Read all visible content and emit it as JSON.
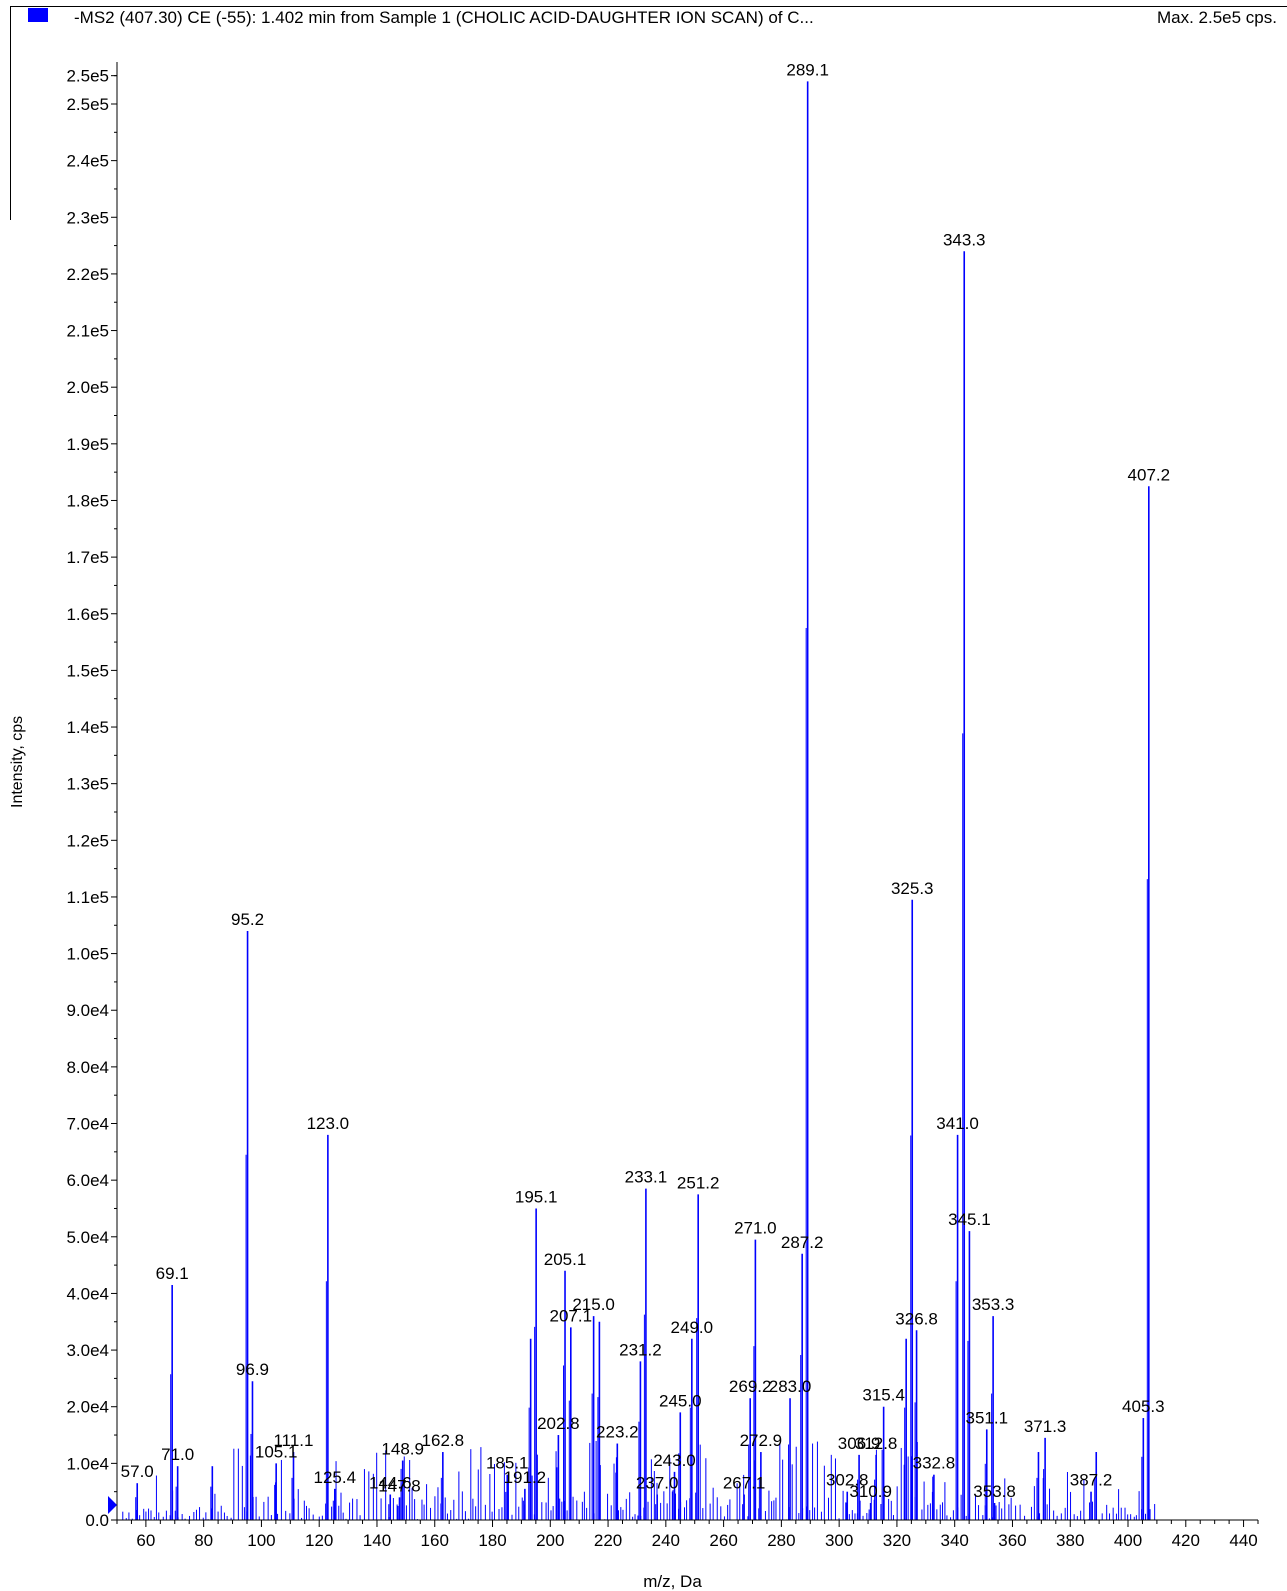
{
  "header": {
    "title": "-MS2 (407.30) CE (-55): 1.402 min from Sample 1 (CHOLIC ACID-DAUGHTER ION SCAN) of C...",
    "max_label": "Max. 2.5e5 cps."
  },
  "colors": {
    "series": "#0000ff",
    "axis": "#000000",
    "text": "#000000"
  },
  "chart_data": {
    "type": "bar",
    "xlabel": "m/z, Da",
    "ylabel": "Intensity, cps",
    "xlim": [
      50,
      445
    ],
    "ylim": [
      0,
      256000
    ],
    "x_ticks": [
      60,
      80,
      100,
      120,
      140,
      160,
      180,
      200,
      220,
      240,
      260,
      280,
      300,
      320,
      340,
      360,
      380,
      400,
      420,
      440
    ],
    "y_ticks": [
      {
        "v": 0,
        "label": "0.0"
      },
      {
        "v": 10000,
        "label": "1.0e4"
      },
      {
        "v": 20000,
        "label": "2.0e4"
      },
      {
        "v": 30000,
        "label": "3.0e4"
      },
      {
        "v": 40000,
        "label": "4.0e4"
      },
      {
        "v": 50000,
        "label": "5.0e4"
      },
      {
        "v": 60000,
        "label": "6.0e4"
      },
      {
        "v": 70000,
        "label": "7.0e4"
      },
      {
        "v": 80000,
        "label": "8.0e4"
      },
      {
        "v": 90000,
        "label": "9.0e4"
      },
      {
        "v": 100000,
        "label": "1.0e5"
      },
      {
        "v": 110000,
        "label": "1.1e5"
      },
      {
        "v": 120000,
        "label": "1.2e5"
      },
      {
        "v": 130000,
        "label": "1.3e5"
      },
      {
        "v": 140000,
        "label": "1.4e5"
      },
      {
        "v": 150000,
        "label": "1.5e5"
      },
      {
        "v": 160000,
        "label": "1.6e5"
      },
      {
        "v": 170000,
        "label": "1.7e5"
      },
      {
        "v": 180000,
        "label": "1.8e5"
      },
      {
        "v": 190000,
        "label": "1.9e5"
      },
      {
        "v": 200000,
        "label": "2.0e5"
      },
      {
        "v": 210000,
        "label": "2.1e5"
      },
      {
        "v": 220000,
        "label": "2.2e5"
      },
      {
        "v": 230000,
        "label": "2.3e5"
      },
      {
        "v": 240000,
        "label": "2.4e5"
      },
      {
        "v": 250000,
        "label": "2.5e5"
      },
      {
        "v": 255000,
        "label": "2.5e5"
      }
    ],
    "peaks": [
      {
        "x": 57.0,
        "y": 6500,
        "label": "57.0"
      },
      {
        "x": 69.1,
        "y": 41500,
        "label": "69.1"
      },
      {
        "x": 71.0,
        "y": 9500,
        "label": "71.0"
      },
      {
        "x": 83.0,
        "y": 9500
      },
      {
        "x": 95.2,
        "y": 104000,
        "label": "95.2"
      },
      {
        "x": 96.9,
        "y": 24500,
        "label": "96.9"
      },
      {
        "x": 105.1,
        "y": 10000,
        "label": "105.1"
      },
      {
        "x": 111.1,
        "y": 12000,
        "label": "111.1"
      },
      {
        "x": 123.0,
        "y": 68000,
        "label": "123.0"
      },
      {
        "x": 125.4,
        "y": 5500,
        "label": "125.4"
      },
      {
        "x": 144.6,
        "y": 4500,
        "label": "144.6"
      },
      {
        "x": 147.8,
        "y": 4000,
        "label": "147.8"
      },
      {
        "x": 148.9,
        "y": 10500,
        "label": "148.9"
      },
      {
        "x": 162.8,
        "y": 12000,
        "label": "162.8"
      },
      {
        "x": 185.1,
        "y": 8000,
        "label": "185.1"
      },
      {
        "x": 191.2,
        "y": 5500,
        "label": "191.2"
      },
      {
        "x": 193.2,
        "y": 32000
      },
      {
        "x": 195.1,
        "y": 55000,
        "label": "195.1"
      },
      {
        "x": 202.8,
        "y": 15000,
        "label": "202.8"
      },
      {
        "x": 205.1,
        "y": 44000,
        "label": "205.1"
      },
      {
        "x": 207.1,
        "y": 34000,
        "label": "207.1"
      },
      {
        "x": 215.0,
        "y": 36000,
        "label": "215.0"
      },
      {
        "x": 217.0,
        "y": 35000
      },
      {
        "x": 223.2,
        "y": 13500,
        "label": "223.2"
      },
      {
        "x": 231.2,
        "y": 28000,
        "label": "231.2"
      },
      {
        "x": 233.1,
        "y": 58500,
        "label": "233.1"
      },
      {
        "x": 237.0,
        "y": 4500,
        "label": "237.0"
      },
      {
        "x": 243.0,
        "y": 8500,
        "label": "243.0"
      },
      {
        "x": 245.0,
        "y": 19000,
        "label": "245.0"
      },
      {
        "x": 249.0,
        "y": 32000,
        "label": "249.0"
      },
      {
        "x": 251.2,
        "y": 57500,
        "label": "251.2"
      },
      {
        "x": 267.1,
        "y": 4500,
        "label": "267.1"
      },
      {
        "x": 269.2,
        "y": 21500,
        "label": "269.2"
      },
      {
        "x": 271.0,
        "y": 49500,
        "label": "271.0"
      },
      {
        "x": 272.9,
        "y": 12000,
        "label": "272.9"
      },
      {
        "x": 283.0,
        "y": 21500,
        "label": "283.0"
      },
      {
        "x": 287.2,
        "y": 47000,
        "label": "287.2"
      },
      {
        "x": 289.1,
        "y": 254000,
        "label": "289.1"
      },
      {
        "x": 302.8,
        "y": 5000,
        "label": "302.8"
      },
      {
        "x": 306.9,
        "y": 11500,
        "label": "306.9"
      },
      {
        "x": 310.9,
        "y": 3000,
        "label": "310.9"
      },
      {
        "x": 312.8,
        "y": 11500,
        "label": "312.8"
      },
      {
        "x": 315.4,
        "y": 20000,
        "label": "315.4"
      },
      {
        "x": 323.2,
        "y": 32000
      },
      {
        "x": 325.3,
        "y": 109500,
        "label": "325.3"
      },
      {
        "x": 326.8,
        "y": 33500,
        "label": "326.8"
      },
      {
        "x": 332.8,
        "y": 8000,
        "label": "332.8"
      },
      {
        "x": 341.0,
        "y": 68000,
        "label": "341.0"
      },
      {
        "x": 343.3,
        "y": 224000,
        "label": "343.3"
      },
      {
        "x": 345.1,
        "y": 51000,
        "label": "345.1"
      },
      {
        "x": 351.1,
        "y": 16000,
        "label": "351.1"
      },
      {
        "x": 353.3,
        "y": 36000,
        "label": "353.3"
      },
      {
        "x": 353.8,
        "y": 3000,
        "label": "353.8"
      },
      {
        "x": 369.0,
        "y": 12000
      },
      {
        "x": 371.3,
        "y": 14500,
        "label": "371.3"
      },
      {
        "x": 387.2,
        "y": 5000,
        "label": "387.2"
      },
      {
        "x": 389.0,
        "y": 12000
      },
      {
        "x": 405.3,
        "y": 18000,
        "label": "405.3"
      },
      {
        "x": 407.2,
        "y": 182500,
        "label": "407.2"
      }
    ],
    "grid": false,
    "legend_position": "top-left"
  }
}
